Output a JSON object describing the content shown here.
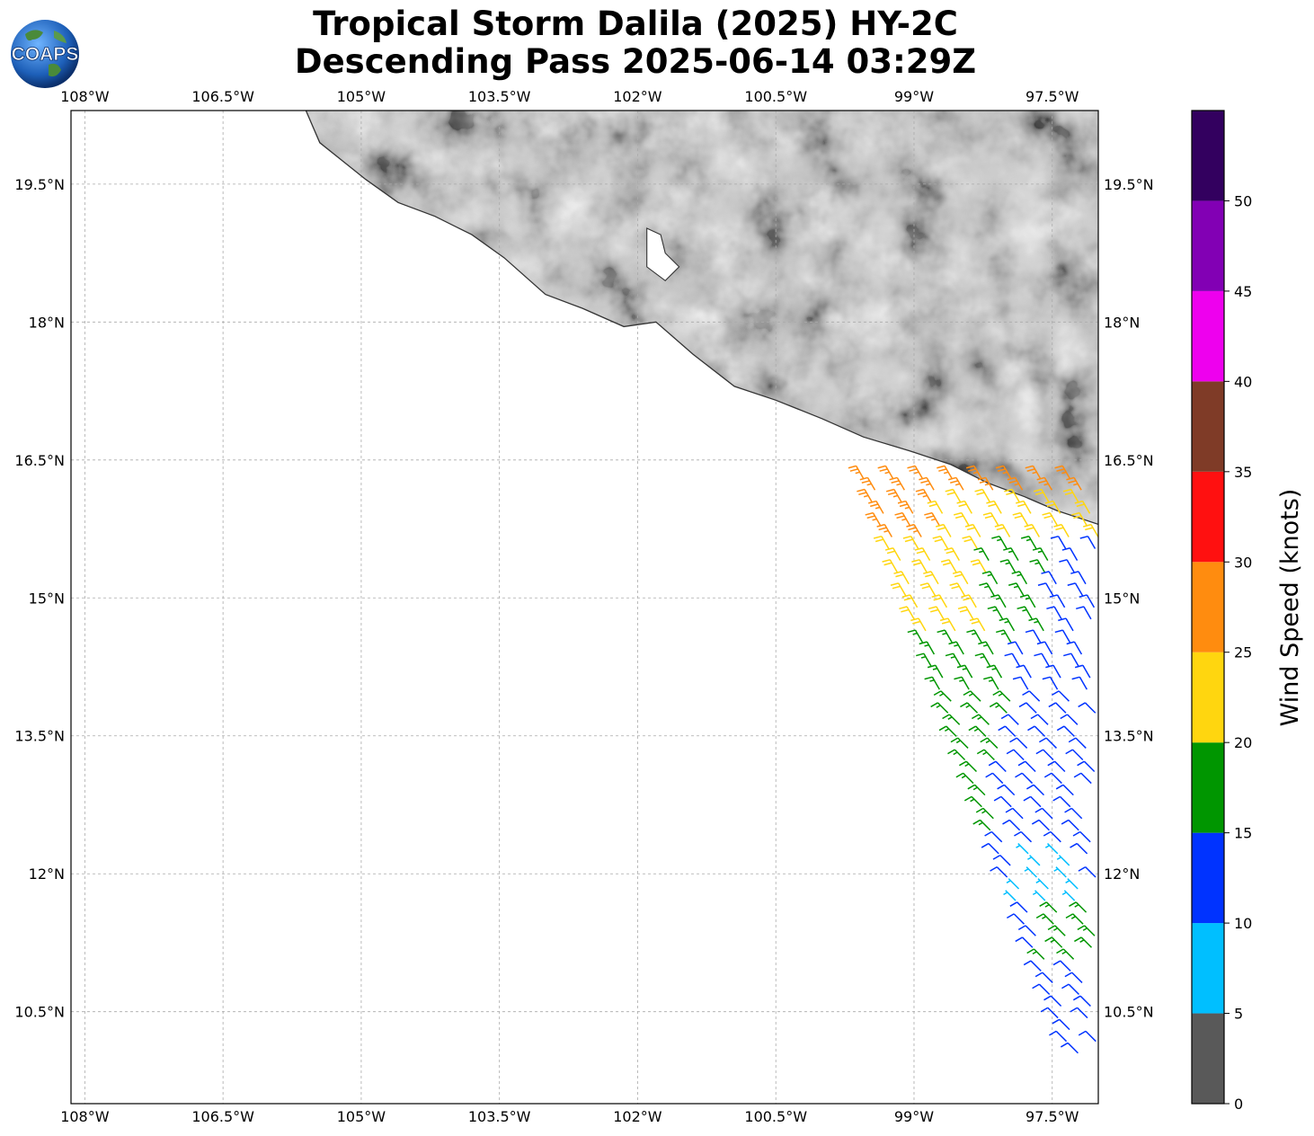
{
  "title": {
    "line1": "Tropical Storm Dalila (2025) HY-2C",
    "line2": "Descending Pass 2025-06-14 03:29Z"
  },
  "logo": {
    "text": "COAPS",
    "icon": "earth-globe-icon"
  },
  "map": {
    "lon_range": [
      -108.15,
      -97.0
    ],
    "lat_range": [
      9.5,
      20.3
    ],
    "lon_ticks": [
      {
        "value": -108.0,
        "label": "108°W"
      },
      {
        "value": -106.5,
        "label": "106.5°W"
      },
      {
        "value": -105.0,
        "label": "105°W"
      },
      {
        "value": -103.5,
        "label": "103.5°W"
      },
      {
        "value": -102.0,
        "label": "102°W"
      },
      {
        "value": -100.5,
        "label": "100.5°W"
      },
      {
        "value": -99.0,
        "label": "99°W"
      },
      {
        "value": -97.5,
        "label": "97.5°W"
      }
    ],
    "lat_ticks": [
      {
        "value": 19.5,
        "label": "19.5°N"
      },
      {
        "value": 18.0,
        "label": "18°N"
      },
      {
        "value": 16.5,
        "label": "16.5°N"
      },
      {
        "value": 15.0,
        "label": "15°N"
      },
      {
        "value": 13.5,
        "label": "13.5°N"
      },
      {
        "value": 12.0,
        "label": "12°N"
      },
      {
        "value": 10.5,
        "label": "10.5°N"
      }
    ],
    "gridlines": true,
    "land_color": "#d8d8d8",
    "coast_color": "#333333",
    "coastline": [
      [
        -105.6,
        20.3
      ],
      [
        -105.45,
        19.95
      ],
      [
        -105.2,
        19.75
      ],
      [
        -104.95,
        19.55
      ],
      [
        -104.6,
        19.3
      ],
      [
        -104.2,
        19.15
      ],
      [
        -103.8,
        18.95
      ],
      [
        -103.45,
        18.7
      ],
      [
        -103.0,
        18.3
      ],
      [
        -102.6,
        18.15
      ],
      [
        -102.15,
        17.95
      ],
      [
        -101.8,
        18.0
      ],
      [
        -101.4,
        17.65
      ],
      [
        -100.95,
        17.3
      ],
      [
        -100.5,
        17.15
      ],
      [
        -100.0,
        16.95
      ],
      [
        -99.55,
        16.75
      ],
      [
        -99.05,
        16.6
      ],
      [
        -98.6,
        16.45
      ],
      [
        -98.2,
        16.25
      ],
      [
        -97.8,
        16.1
      ],
      [
        -97.45,
        15.95
      ],
      [
        -97.0,
        15.8
      ]
    ],
    "lakes": [
      [
        [
          -101.9,
          19.02
        ],
        [
          -101.75,
          18.95
        ],
        [
          -101.7,
          18.75
        ],
        [
          -101.55,
          18.6
        ],
        [
          -101.7,
          18.45
        ],
        [
          -101.9,
          18.6
        ],
        [
          -101.9,
          18.85
        ]
      ]
    ]
  },
  "wind_barbs": {
    "unit": "knots",
    "note_direction": "from",
    "rows_lat_top": 16.3,
    "rows_lat_bottom": 10.05,
    "swath_right_lon": -97.0
  },
  "colorbar": {
    "label": "Wind Speed (knots)",
    "bins": [
      {
        "min": 0,
        "max": 5,
        "color": "#595959"
      },
      {
        "min": 5,
        "max": 10,
        "color": "#00bfff"
      },
      {
        "min": 10,
        "max": 15,
        "color": "#0033ff"
      },
      {
        "min": 15,
        "max": 20,
        "color": "#009600"
      },
      {
        "min": 20,
        "max": 25,
        "color": "#ffd60f"
      },
      {
        "min": 25,
        "max": 30,
        "color": "#ff8c0f"
      },
      {
        "min": 30,
        "max": 35,
        "color": "#ff1010"
      },
      {
        "min": 35,
        "max": 40,
        "color": "#7f3b27"
      },
      {
        "min": 40,
        "max": 45,
        "color": "#ee00ee"
      },
      {
        "min": 45,
        "max": 50,
        "color": "#8200b4"
      },
      {
        "min": 50,
        "max": 55,
        "color": "#33005f"
      }
    ],
    "tick_labels": [
      "0",
      "5",
      "10",
      "15",
      "20",
      "25",
      "30",
      "35",
      "40",
      "45",
      "50"
    ]
  }
}
